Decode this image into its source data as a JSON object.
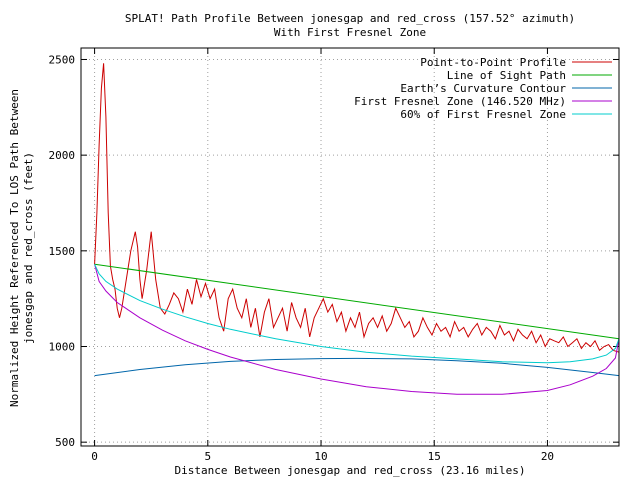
{
  "chart_data": {
    "type": "line",
    "title_line1": "SPLAT! Path Profile Between jonesgap and red_cross (157.52° azimuth)",
    "title_line2": "With First Fresnel Zone",
    "xlabel": "Distance Between jonesgap and red_cross (23.16 miles)",
    "ylabel_line1": "Normalized Height Referenced To LOS Path Between",
    "ylabel_line2": "jonesgap and red_cross (feet)",
    "xlim": [
      -0.6,
      23.16
    ],
    "ylim": [
      480,
      2560
    ],
    "xticks": [
      0,
      5,
      10,
      15,
      20
    ],
    "yticks": [
      500,
      1000,
      1500,
      2000,
      2500
    ],
    "grid": true,
    "legend_position": "top-right",
    "series": [
      {
        "name": "Point-to-Point Profile",
        "color": "#cc0000",
        "x": [
          0,
          0.1,
          0.2,
          0.3,
          0.4,
          0.5,
          0.6,
          0.7,
          0.8,
          0.9,
          1.0,
          1.1,
          1.2,
          1.4,
          1.6,
          1.8,
          1.9,
          2.0,
          2.1,
          2.3,
          2.5,
          2.7,
          2.9,
          3.1,
          3.3,
          3.5,
          3.7,
          3.9,
          4.1,
          4.3,
          4.5,
          4.7,
          4.9,
          5.1,
          5.3,
          5.5,
          5.7,
          5.9,
          6.1,
          6.3,
          6.5,
          6.7,
          6.9,
          7.1,
          7.3,
          7.5,
          7.7,
          7.9,
          8.1,
          8.3,
          8.5,
          8.7,
          8.9,
          9.1,
          9.3,
          9.5,
          9.7,
          9.9,
          10.1,
          10.3,
          10.5,
          10.7,
          10.9,
          11.1,
          11.3,
          11.5,
          11.7,
          11.9,
          12.1,
          12.3,
          12.5,
          12.7,
          12.9,
          13.1,
          13.3,
          13.5,
          13.7,
          13.9,
          14.1,
          14.3,
          14.5,
          14.7,
          14.9,
          15.1,
          15.3,
          15.5,
          15.7,
          15.9,
          16.1,
          16.3,
          16.5,
          16.7,
          16.9,
          17.1,
          17.3,
          17.5,
          17.7,
          17.9,
          18.1,
          18.3,
          18.5,
          18.7,
          18.9,
          19.1,
          19.3,
          19.5,
          19.7,
          19.9,
          20.1,
          20.3,
          20.5,
          20.7,
          20.9,
          21.1,
          21.3,
          21.5,
          21.7,
          21.9,
          22.1,
          22.3,
          22.5,
          22.7,
          22.9,
          23.16
        ],
        "y": [
          1430,
          1700,
          2050,
          2350,
          2480,
          2200,
          1700,
          1420,
          1350,
          1300,
          1200,
          1150,
          1200,
          1350,
          1500,
          1600,
          1520,
          1350,
          1250,
          1400,
          1600,
          1350,
          1200,
          1170,
          1220,
          1280,
          1250,
          1180,
          1300,
          1220,
          1350,
          1260,
          1330,
          1250,
          1300,
          1150,
          1080,
          1250,
          1300,
          1200,
          1150,
          1250,
          1100,
          1200,
          1050,
          1180,
          1250,
          1100,
          1150,
          1200,
          1080,
          1230,
          1150,
          1100,
          1200,
          1050,
          1150,
          1200,
          1250,
          1180,
          1220,
          1130,
          1180,
          1080,
          1150,
          1100,
          1180,
          1050,
          1120,
          1150,
          1100,
          1160,
          1080,
          1120,
          1200,
          1150,
          1100,
          1130,
          1050,
          1080,
          1150,
          1100,
          1060,
          1120,
          1080,
          1100,
          1050,
          1130,
          1080,
          1100,
          1050,
          1090,
          1120,
          1060,
          1100,
          1080,
          1040,
          1110,
          1060,
          1080,
          1030,
          1090,
          1060,
          1040,
          1080,
          1020,
          1060,
          1000,
          1040,
          1030,
          1020,
          1050,
          1000,
          1020,
          1040,
          990,
          1020,
          1000,
          1030,
          980,
          1000,
          1010,
          980,
          970
        ]
      },
      {
        "name": "Line of Sight Path",
        "color": "#00aa00",
        "x": [
          0,
          23.16
        ],
        "y": [
          1430,
          1040
        ]
      },
      {
        "name": "Earth’s Curvature Contour",
        "color": "#0066aa",
        "x": [
          0,
          2,
          4,
          6,
          8,
          10,
          11.58,
          14,
          16,
          18,
          20,
          22,
          23.16
        ],
        "y": [
          848,
          880,
          905,
          922,
          932,
          937,
          938,
          935,
          926,
          912,
          891,
          864,
          848
        ]
      },
      {
        "name": "First Fresnel Zone (146.520 MHz)",
        "color": "#aa00cc",
        "x": [
          0,
          0.2,
          0.5,
          1,
          2,
          3,
          4,
          5,
          6,
          8,
          10,
          12,
          14,
          16,
          18,
          20,
          21,
          22,
          22.6,
          23,
          23.16
        ],
        "y": [
          1430,
          1340,
          1290,
          1230,
          1150,
          1085,
          1030,
          985,
          945,
          880,
          830,
          790,
          765,
          750,
          750,
          770,
          800,
          845,
          885,
          940,
          1040
        ]
      },
      {
        "name": "60% of First Fresnel Zone",
        "color": "#00cccc",
        "x": [
          0,
          0.2,
          0.5,
          1,
          2,
          3,
          4,
          5,
          6,
          8,
          10,
          12,
          14,
          16,
          18,
          20,
          21,
          22,
          22.6,
          23,
          23.16
        ],
        "y": [
          1430,
          1380,
          1340,
          1300,
          1240,
          1195,
          1155,
          1120,
          1090,
          1040,
          1000,
          970,
          950,
          935,
          920,
          915,
          920,
          935,
          955,
          990,
          1040
        ]
      }
    ]
  }
}
